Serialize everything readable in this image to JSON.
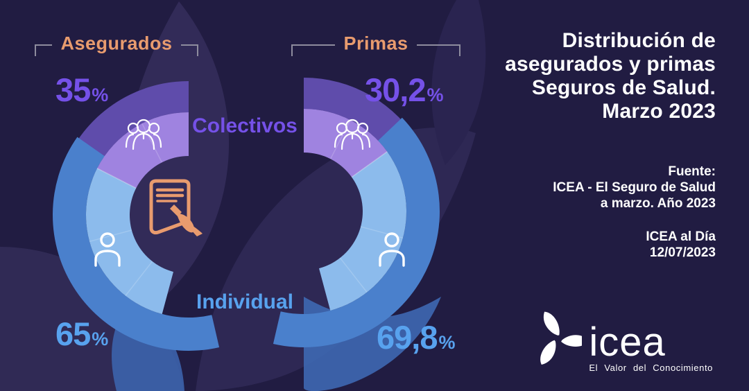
{
  "header": {
    "title_lines": [
      "Distribución de",
      "asegurados y primas",
      "Seguros de Salud.",
      "Marzo 2023"
    ]
  },
  "source": {
    "heading": "Fuente:",
    "lines": [
      "ICEA - El Seguro de Salud",
      "a marzo. Año 2023"
    ]
  },
  "dateline": {
    "lines": [
      "ICEA al Día",
      "12/07/2023"
    ]
  },
  "logo": {
    "wordmark": "icea",
    "tagline": "El Valor del Conocimiento"
  },
  "chart_data": {
    "type": "donut-pair",
    "categories": [
      "Colectivos",
      "Individual"
    ],
    "charts": [
      {
        "label": "Asegurados",
        "opening": "right",
        "segments": [
          {
            "name": "Colectivos",
            "pct": 35,
            "number": "35",
            "unit": "%"
          },
          {
            "name": "Individual",
            "pct": 65,
            "number": "65",
            "unit": "%"
          }
        ]
      },
      {
        "label": "Primas",
        "opening": "left",
        "segments": [
          {
            "name": "Colectivos",
            "pct": 30.2,
            "number": "30,2",
            "unit": "%"
          },
          {
            "name": "Individual",
            "pct": 69.8,
            "number": "69,8",
            "unit": "%"
          }
        ]
      }
    ],
    "colors": {
      "collective_dark": "#5f4cab",
      "collective_light": "#9f83e0",
      "individual_dark": "#4a80cc",
      "individual_light": "#8cbbec",
      "label_collective": "#7551e8",
      "label_individual": "#58a2ee",
      "bracket_label": "#e89b6e",
      "accent_orange": "#e89b6e",
      "background": "#211c42"
    }
  }
}
